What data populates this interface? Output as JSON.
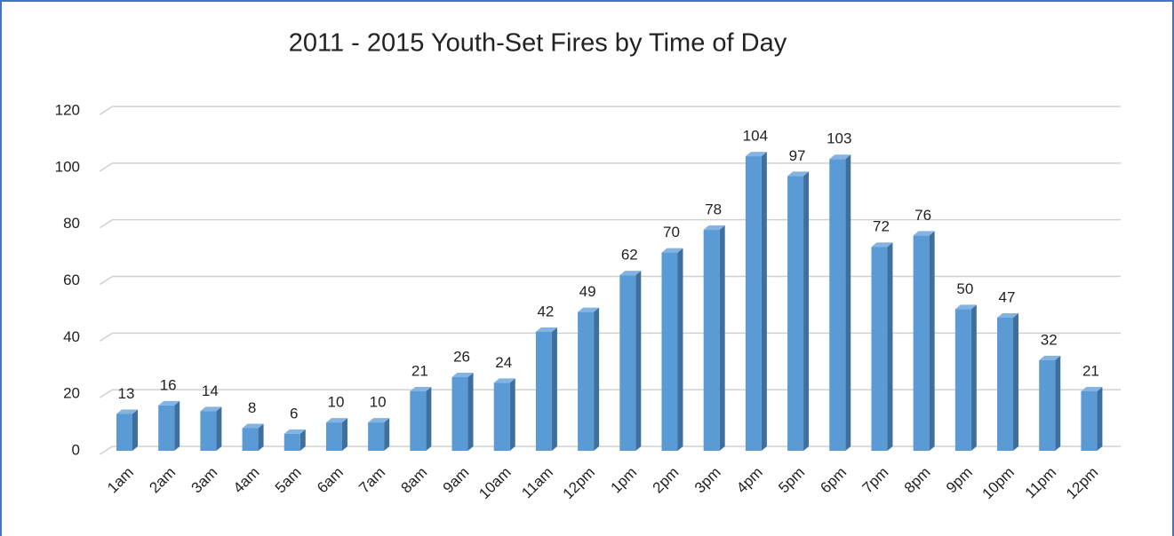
{
  "chart_data": {
    "type": "bar",
    "title": "2011 - 2015 Youth-Set Fires by Time of Day",
    "categories": [
      "1am",
      "2am",
      "3am",
      "4am",
      "5am",
      "6am",
      "7am",
      "8am",
      "9am",
      "10am",
      "11am",
      "12pm",
      "1pm",
      "2pm",
      "3pm",
      "4pm",
      "5pm",
      "6pm",
      "7pm",
      "8pm",
      "9pm",
      "10pm",
      "11pm",
      "12pm"
    ],
    "values": [
      13,
      16,
      14,
      8,
      6,
      10,
      10,
      21,
      26,
      24,
      42,
      49,
      62,
      70,
      78,
      104,
      97,
      103,
      72,
      76,
      50,
      47,
      32,
      21
    ],
    "color": "#5b9bd5",
    "ylim": [
      0,
      120
    ],
    "yticks": [
      0,
      20,
      40,
      60,
      80,
      100,
      120
    ],
    "grid": true
  }
}
